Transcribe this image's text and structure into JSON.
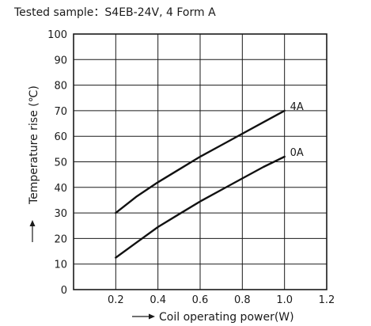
{
  "chart_data": {
    "type": "line",
    "title": "Tested sample：S4EB-24V, 4 Form A",
    "xlabel": "Coil operating power(W)",
    "ylabel": "Temperature rise (℃)",
    "xlim": [
      0,
      1.2
    ],
    "ylim": [
      0,
      100
    ],
    "x_ticks": [
      "0",
      "0.2",
      "0.4",
      "0.6",
      "0.8",
      "1.0",
      "1.2"
    ],
    "y_ticks": [
      "0",
      "10",
      "20",
      "30",
      "40",
      "50",
      "60",
      "70",
      "80",
      "90",
      "100"
    ],
    "grid": true,
    "series": [
      {
        "name": "4A",
        "x": [
          0.2,
          0.3,
          0.4,
          0.5,
          0.6,
          0.7,
          0.8,
          0.9,
          1.0
        ],
        "y": [
          30,
          36.5,
          42,
          47,
          52,
          56.5,
          61,
          65.5,
          70
        ]
      },
      {
        "name": "0A",
        "x": [
          0.2,
          0.3,
          0.4,
          0.5,
          0.6,
          0.7,
          0.8,
          0.9,
          1.0
        ],
        "y": [
          12.5,
          18.5,
          24.5,
          29.5,
          34.5,
          39,
          43.5,
          48,
          52
        ]
      }
    ]
  }
}
